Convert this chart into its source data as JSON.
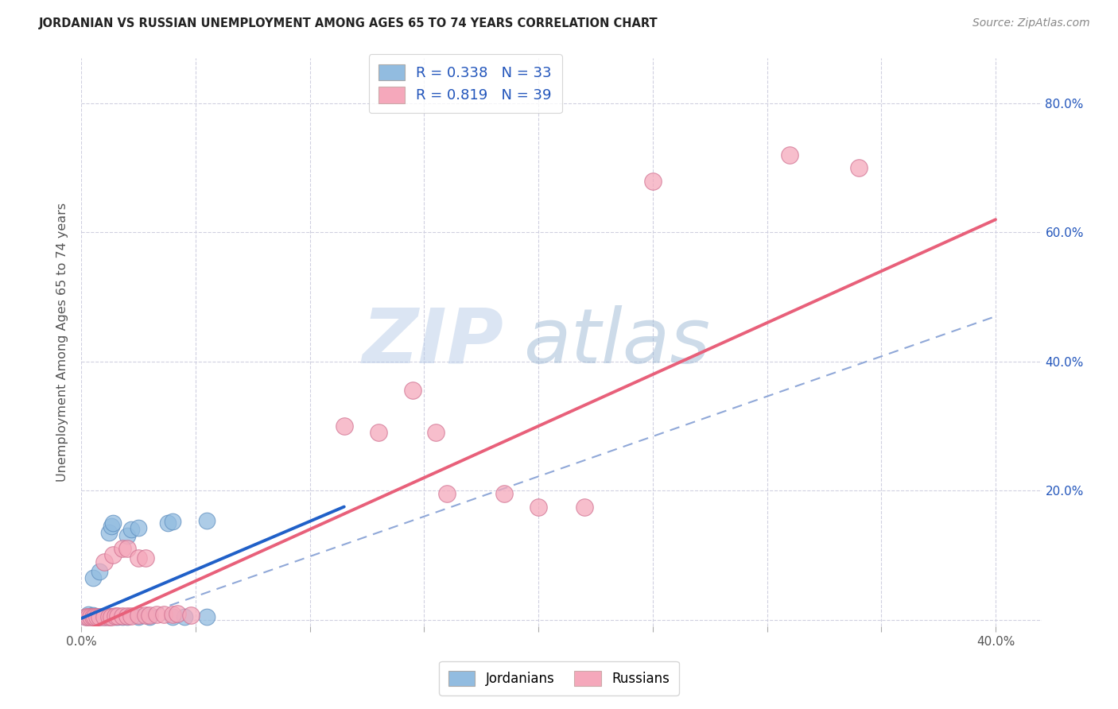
{
  "title": "JORDANIAN VS RUSSIAN UNEMPLOYMENT AMONG AGES 65 TO 74 YEARS CORRELATION CHART",
  "source": "Source: ZipAtlas.com",
  "ylabel": "Unemployment Among Ages 65 to 74 years",
  "xlim": [
    0.0,
    0.42
  ],
  "ylim": [
    -0.01,
    0.87
  ],
  "xticks": [
    0.0,
    0.05,
    0.1,
    0.15,
    0.2,
    0.25,
    0.3,
    0.35,
    0.4
  ],
  "yticks": [
    0.0,
    0.2,
    0.4,
    0.6,
    0.8
  ],
  "jordan_color": "#92bce0",
  "russia_color": "#f5a8bb",
  "jordan_line_color": "#2060c8",
  "russia_line_color": "#e8607a",
  "dashed_line_color": "#90a8d8",
  "background_color": "#ffffff",
  "grid_color": "#d0d0e0",
  "jordan_line_x0": 0.0,
  "jordan_line_y0": 0.002,
  "jordan_line_x1": 0.115,
  "jordan_line_y1": 0.175,
  "russia_line_x0": 0.0,
  "russia_line_y0": -0.02,
  "russia_line_x1": 0.4,
  "russia_line_y1": 0.62,
  "dash_line_x0": 0.025,
  "dash_line_y0": 0.005,
  "dash_line_x1": 0.4,
  "dash_line_y1": 0.47,
  "jordan_points": [
    [
      0.002,
      0.005
    ],
    [
      0.003,
      0.008
    ],
    [
      0.004,
      0.006
    ],
    [
      0.005,
      0.004
    ],
    [
      0.005,
      0.007
    ],
    [
      0.006,
      0.005
    ],
    [
      0.007,
      0.005
    ],
    [
      0.008,
      0.004
    ],
    [
      0.009,
      0.005
    ],
    [
      0.01,
      0.005
    ],
    [
      0.011,
      0.005
    ],
    [
      0.012,
      0.005
    ],
    [
      0.013,
      0.004
    ],
    [
      0.015,
      0.005
    ],
    [
      0.016,
      0.005
    ],
    [
      0.018,
      0.005
    ],
    [
      0.02,
      0.005
    ],
    [
      0.025,
      0.005
    ],
    [
      0.03,
      0.005
    ],
    [
      0.04,
      0.005
    ],
    [
      0.045,
      0.005
    ],
    [
      0.055,
      0.005
    ],
    [
      0.005,
      0.065
    ],
    [
      0.008,
      0.075
    ],
    [
      0.012,
      0.135
    ],
    [
      0.013,
      0.145
    ],
    [
      0.014,
      0.15
    ],
    [
      0.02,
      0.13
    ],
    [
      0.022,
      0.14
    ],
    [
      0.025,
      0.142
    ],
    [
      0.038,
      0.15
    ],
    [
      0.04,
      0.152
    ],
    [
      0.055,
      0.153
    ]
  ],
  "russia_points": [
    [
      0.002,
      0.004
    ],
    [
      0.003,
      0.005
    ],
    [
      0.004,
      0.005
    ],
    [
      0.005,
      0.005
    ],
    [
      0.006,
      0.005
    ],
    [
      0.007,
      0.005
    ],
    [
      0.008,
      0.005
    ],
    [
      0.01,
      0.005
    ],
    [
      0.012,
      0.005
    ],
    [
      0.013,
      0.005
    ],
    [
      0.015,
      0.006
    ],
    [
      0.016,
      0.006
    ],
    [
      0.018,
      0.006
    ],
    [
      0.02,
      0.006
    ],
    [
      0.022,
      0.006
    ],
    [
      0.025,
      0.007
    ],
    [
      0.028,
      0.007
    ],
    [
      0.03,
      0.007
    ],
    [
      0.033,
      0.008
    ],
    [
      0.036,
      0.008
    ],
    [
      0.04,
      0.008
    ],
    [
      0.042,
      0.009
    ],
    [
      0.048,
      0.007
    ],
    [
      0.01,
      0.09
    ],
    [
      0.014,
      0.1
    ],
    [
      0.018,
      0.11
    ],
    [
      0.02,
      0.11
    ],
    [
      0.025,
      0.095
    ],
    [
      0.028,
      0.095
    ],
    [
      0.115,
      0.3
    ],
    [
      0.13,
      0.29
    ],
    [
      0.145,
      0.355
    ],
    [
      0.155,
      0.29
    ],
    [
      0.16,
      0.195
    ],
    [
      0.185,
      0.195
    ],
    [
      0.2,
      0.175
    ],
    [
      0.22,
      0.175
    ],
    [
      0.25,
      0.68
    ],
    [
      0.31,
      0.72
    ],
    [
      0.34,
      0.7
    ]
  ],
  "watermark_zip": "ZIP",
  "watermark_atlas": "atlas",
  "figsize": [
    14.06,
    8.92
  ],
  "dpi": 100
}
